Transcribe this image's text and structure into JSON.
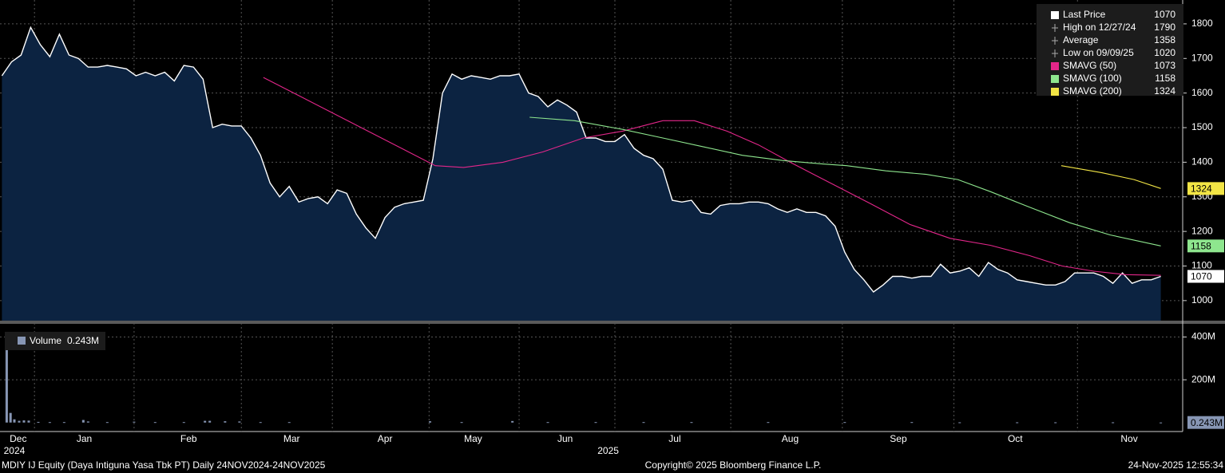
{
  "chart_data": [
    {
      "type": "line",
      "xlim": [
        -0.2,
        123.2
      ],
      "ylim": [
        942,
        1869
      ],
      "yticks": [
        1000,
        1100,
        1200,
        1300,
        1400,
        1500,
        1600,
        1700,
        1800
      ],
      "xgrid": [
        3.4,
        13.8,
        25,
        34.5,
        44.6,
        54,
        64,
        76.1,
        87.75,
        99.4,
        112.3
      ],
      "grid": true,
      "legend_position": "upper right",
      "series": [
        {
          "name": "Last Price",
          "color": "#ffffff",
          "fill": "#0c2341",
          "badge": true,
          "x": [
            0,
            1,
            2,
            3,
            4,
            5,
            6,
            7,
            8,
            9,
            10,
            11,
            12,
            13,
            14,
            15,
            16,
            17,
            18,
            19,
            20,
            21,
            22,
            23,
            24,
            25,
            26,
            27,
            28,
            29,
            30,
            31,
            32,
            33,
            34,
            35,
            36,
            37,
            38,
            39,
            40,
            41,
            42,
            43,
            44,
            45,
            46,
            47,
            48,
            49,
            50,
            51,
            52,
            53,
            54,
            55,
            56,
            57,
            58,
            59,
            60,
            61,
            62,
            63,
            64,
            65,
            66,
            67,
            68,
            69,
            70,
            71,
            72,
            73,
            74,
            75,
            76,
            77,
            78,
            79,
            80,
            81,
            82,
            83,
            84,
            85,
            86,
            87,
            88,
            89,
            90,
            91,
            92,
            93,
            94,
            95,
            96,
            97,
            98,
            99,
            100,
            101,
            102,
            103,
            104,
            105,
            106,
            107,
            108,
            109,
            110,
            111,
            112,
            113,
            114,
            115,
            116,
            117,
            118,
            119,
            120,
            121
          ],
          "values": [
            1650,
            1690,
            1710,
            1790,
            1740,
            1705,
            1770,
            1710,
            1700,
            1675,
            1675,
            1680,
            1675,
            1670,
            1650,
            1660,
            1650,
            1660,
            1635,
            1680,
            1675,
            1640,
            1500,
            1510,
            1505,
            1505,
            1470,
            1420,
            1340,
            1300,
            1330,
            1285,
            1295,
            1300,
            1280,
            1320,
            1310,
            1250,
            1210,
            1180,
            1240,
            1270,
            1280,
            1285,
            1290,
            1410,
            1600,
            1655,
            1640,
            1650,
            1645,
            1640,
            1650,
            1650,
            1655,
            1600,
            1590,
            1560,
            1580,
            1565,
            1545,
            1470,
            1470,
            1460,
            1460,
            1480,
            1440,
            1420,
            1410,
            1380,
            1290,
            1285,
            1290,
            1255,
            1250,
            1275,
            1280,
            1280,
            1285,
            1285,
            1280,
            1265,
            1255,
            1265,
            1255,
            1255,
            1245,
            1215,
            1140,
            1090,
            1060,
            1025,
            1045,
            1070,
            1070,
            1065,
            1070,
            1070,
            1105,
            1080,
            1085,
            1095,
            1070,
            1110,
            1090,
            1080,
            1060,
            1055,
            1050,
            1045,
            1045,
            1055,
            1080,
            1080,
            1080,
            1070,
            1050,
            1080,
            1050,
            1060,
            1060,
            1070
          ]
        },
        {
          "name": "SMAVG (50)",
          "color": "#e3268a",
          "badge": false,
          "x": [
            27.3,
            45.25,
            48.2,
            52.3,
            56.5,
            60.7,
            64.8,
            69,
            72.3,
            75.7,
            79,
            82.3,
            86.5,
            90.7,
            94.8,
            99,
            103.2,
            107.3,
            110.7,
            114,
            117.3,
            121
          ],
          "values": [
            1645,
            1390,
            1385,
            1400,
            1430,
            1470,
            1490,
            1520,
            1520,
            1490,
            1450,
            1400,
            1340,
            1280,
            1220,
            1180,
            1160,
            1130,
            1100,
            1085,
            1075,
            1073
          ]
        },
        {
          "name": "SMAVG (100)",
          "color": "#8ee68e",
          "badge": true,
          "x": [
            55.1,
            59.8,
            64.8,
            69,
            73.2,
            77.3,
            81.5,
            85.7,
            88.2,
            92.3,
            96.5,
            99.8,
            103.2,
            107.3,
            111.5,
            115.7,
            121
          ],
          "values": [
            1530,
            1520,
            1495,
            1470,
            1445,
            1420,
            1405,
            1395,
            1390,
            1375,
            1365,
            1350,
            1315,
            1270,
            1225,
            1190,
            1158
          ]
        },
        {
          "name": "SMAVG (200)",
          "color": "#f2e545",
          "badge": true,
          "x": [
            110.6,
            114.8,
            118.2,
            121
          ],
          "values": [
            1390,
            1370,
            1350,
            1324
          ]
        }
      ],
      "stats": [
        {
          "label": "High on 12/27/24",
          "value": 1790
        },
        {
          "label": "Average",
          "value": 1358
        },
        {
          "label": "Low on 09/09/25",
          "value": 1020
        }
      ]
    },
    {
      "type": "bar",
      "xlim": [
        -0.2,
        123.2
      ],
      "ylim": [
        -42000000,
        461500000
      ],
      "yticks": [
        {
          "value": 200000000,
          "label": "200M"
        },
        {
          "value": 400000000,
          "label": "400M"
        }
      ],
      "grid": true,
      "xticks": [
        {
          "value": 1.7,
          "label": "Dec"
        },
        {
          "value": 8.6,
          "label": "Jan"
        },
        {
          "value": 19.5,
          "label": "Feb"
        },
        {
          "value": 30.25,
          "label": "Mar"
        },
        {
          "value": 40,
          "label": "Apr"
        },
        {
          "value": 49.2,
          "label": "May"
        },
        {
          "value": 58.8,
          "label": "Jun"
        },
        {
          "value": 70.25,
          "label": "Jul"
        },
        {
          "value": 82.3,
          "label": "Aug"
        },
        {
          "value": 93.6,
          "label": "Sep"
        },
        {
          "value": 105.8,
          "label": "Oct"
        },
        {
          "value": 117.7,
          "label": "Nov"
        }
      ],
      "year_ticks": [
        {
          "value": 1.3,
          "label": "2024"
        },
        {
          "value": 63.3,
          "label": "2025"
        }
      ],
      "series": [
        {
          "name": "Volume",
          "color": "#8796b4",
          "badge": true,
          "x": [
            0.5,
            0.9,
            1.3,
            1.8,
            2.3,
            2.8,
            3.8,
            5,
            6.5,
            8.5,
            9,
            11,
            13.8,
            16,
            19,
            21.2,
            21.7,
            23.3,
            24.8,
            27,
            30,
            44.7,
            48,
            53.3,
            57,
            62,
            67,
            72,
            80,
            88,
            95,
            100,
            106,
            110,
            116,
            121
          ],
          "values": [
            346000000,
            45000000,
            15000000,
            8000000,
            10000000,
            9000000,
            3000000,
            2000000,
            2000000,
            12000000,
            5000000,
            2000000,
            4000000,
            2000000,
            2000000,
            8000000,
            8000000,
            6000000,
            5000000,
            2000000,
            2000000,
            6000000,
            2000000,
            7000000,
            2000000,
            2000000,
            2000000,
            2000000,
            2000000,
            2000000,
            2000000,
            1000000,
            1000000,
            1000000,
            1000000,
            243000
          ],
          "value_labels": [
            null,
            null,
            null,
            null,
            null,
            null,
            null,
            null,
            null,
            null,
            null,
            null,
            null,
            null,
            null,
            null,
            null,
            null,
            null,
            null,
            null,
            null,
            null,
            null,
            null,
            null,
            null,
            null,
            null,
            null,
            null,
            null,
            null,
            null,
            null,
            "0.243M"
          ]
        }
      ]
    }
  ],
  "footer": {
    "left": "MDIY IJ Equity (Daya Intiguna Yasa Tbk PT) Daily 24NOV2024-24NOV2025",
    "center": "Copyright© 2025 Bloomberg Finance L.P.",
    "right": "24-Nov-2025 12:55:34"
  }
}
